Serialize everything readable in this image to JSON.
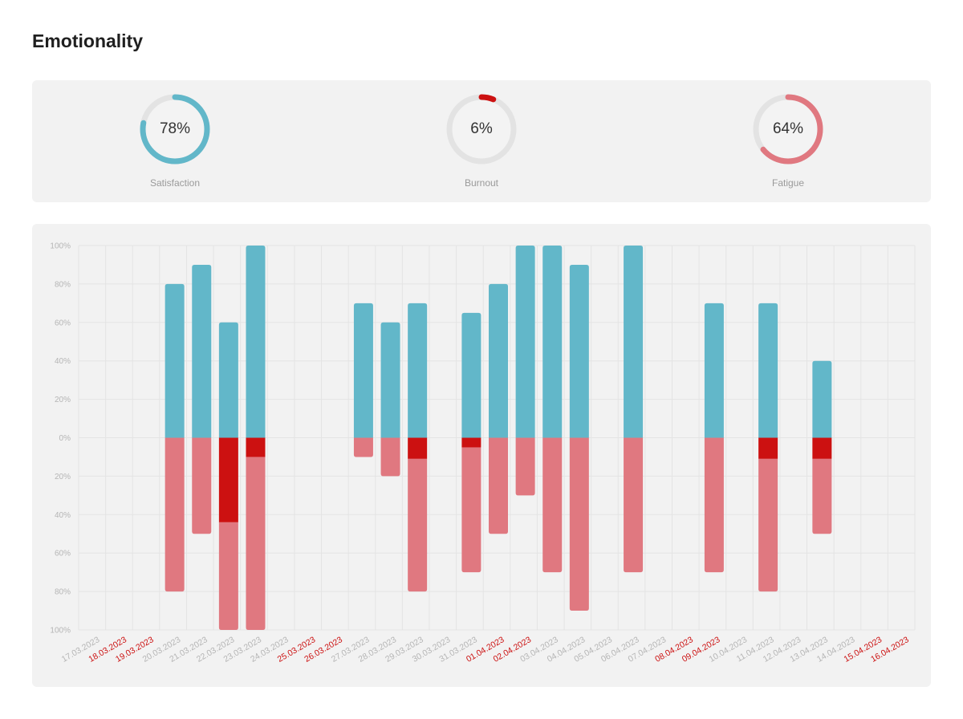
{
  "page": {
    "title": "Emotionality"
  },
  "gauges": [
    {
      "label": "Satisfaction",
      "value": 78,
      "display": "78%",
      "color": "#62b7c9"
    },
    {
      "label": "Burnout",
      "value": 6,
      "display": "6%",
      "color": "#cc1111"
    },
    {
      "label": "Fatigue",
      "value": 64,
      "display": "64%",
      "color": "#e07880"
    }
  ],
  "colors": {
    "positive": "#62b7c9",
    "negative": "#e07880",
    "negative_strong": "#cc1111",
    "weekday_label": "#b5b5b5",
    "weekend_label": "#cc1111",
    "axis_label": "#b5b5b5",
    "grid": "#e4e4e4"
  },
  "chart_data": {
    "type": "bar",
    "stacked": true,
    "grid": true,
    "ylim": [
      -100,
      100
    ],
    "yticks": [
      "100%",
      "80%",
      "60%",
      "40%",
      "20%",
      "0%",
      "20%",
      "40%",
      "60%",
      "80%",
      "100%"
    ],
    "categories": [
      "17.03.2023",
      "18.03.2023",
      "19.03.2023",
      "20.03.2023",
      "21.03.2023",
      "22.03.2023",
      "23.03.2023",
      "24.03.2023",
      "25.03.2023",
      "26.03.2023",
      "27.03.2023",
      "28.03.2023",
      "29.03.2023",
      "30.03.2023",
      "31.03.2023",
      "01.04.2023",
      "02.04.2023",
      "03.04.2023",
      "04.04.2023",
      "05.04.2023",
      "06.04.2023",
      "07.04.2023",
      "08.04.2023",
      "09.04.2023",
      "10.04.2023",
      "11.04.2023",
      "12.04.2023",
      "13.04.2023",
      "14.04.2023",
      "15.04.2023",
      "16.04.2023"
    ],
    "weekend_categories": [
      "18.03.2023",
      "19.03.2023",
      "25.03.2023",
      "26.03.2023",
      "01.04.2023",
      "02.04.2023",
      "08.04.2023",
      "09.04.2023",
      "15.04.2023",
      "16.04.2023"
    ],
    "series": [
      {
        "values": [
          0,
          0,
          0,
          80,
          90,
          60,
          100,
          0,
          0,
          0,
          70,
          60,
          70,
          0,
          65,
          80,
          100,
          100,
          90,
          0,
          100,
          0,
          0,
          70,
          0,
          70,
          0,
          40,
          0,
          0,
          0
        ]
      },
      {
        "values": [
          0,
          0,
          0,
          0,
          0,
          -44,
          -10,
          0,
          0,
          0,
          0,
          0,
          -11,
          0,
          -5,
          0,
          0,
          0,
          0,
          0,
          0,
          0,
          0,
          0,
          0,
          -11,
          0,
          -11,
          0,
          0,
          0
        ]
      },
      {
        "values": [
          0,
          0,
          0,
          -80,
          -50,
          -56,
          -90,
          0,
          0,
          0,
          -10,
          -20,
          -69,
          0,
          -65,
          -50,
          -30,
          -70,
          -90,
          0,
          -70,
          0,
          0,
          -70,
          0,
          -69,
          0,
          -39,
          0,
          0,
          0
        ]
      }
    ]
  }
}
